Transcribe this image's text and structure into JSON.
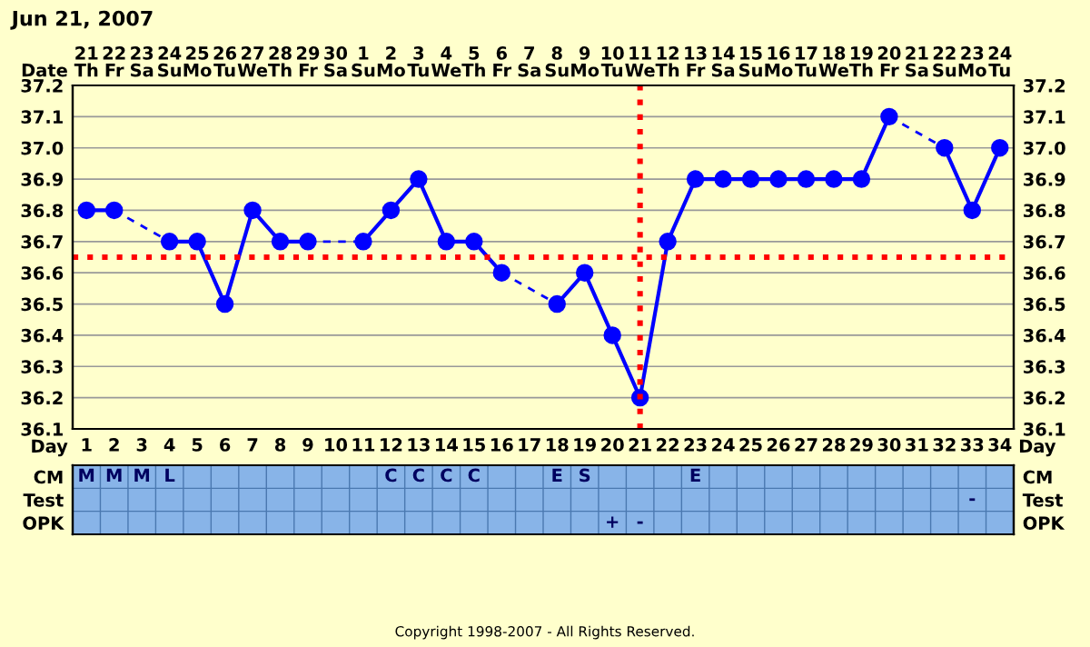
{
  "chart_data": [
    {
      "type": "line",
      "title": "Jun 21, 2007",
      "xlabel": "Day",
      "categories": [
        "1",
        "2",
        "3",
        "4",
        "5",
        "6",
        "7",
        "8",
        "9",
        "10",
        "11",
        "12",
        "13",
        "14",
        "15",
        "16",
        "17",
        "18",
        "19",
        "20",
        "21",
        "22",
        "23",
        "24",
        "25",
        "26",
        "27",
        "28",
        "29",
        "30",
        "31",
        "32",
        "33",
        "34"
      ],
      "series": [
        {
          "color": "#0000ff",
          "values": [
            36.8,
            36.8,
            null,
            36.7,
            36.7,
            36.5,
            36.8,
            36.7,
            36.7,
            null,
            36.7,
            36.8,
            36.9,
            36.7,
            36.7,
            36.6,
            null,
            36.5,
            36.6,
            36.4,
            36.2,
            36.7,
            36.9,
            36.9,
            36.9,
            36.9,
            36.9,
            36.9,
            36.9,
            37.1,
            null,
            37.0,
            36.8,
            37.0
          ]
        }
      ],
      "marker": "circle",
      "line_style": "solid",
      "ylim": [
        36.1,
        37.2
      ],
      "yticks": [
        36.1,
        36.2,
        36.3,
        36.4,
        36.5,
        36.6,
        36.7,
        36.8,
        36.9,
        {
          "value": 37.0,
          "label": "37.0"
        },
        37.1,
        37.2
      ],
      "y2lim": [
        36.1,
        37.2
      ],
      "y2ticks": [
        36.1,
        36.2,
        36.3,
        36.4,
        36.5,
        36.6,
        36.7,
        36.8,
        36.9,
        {
          "value": 37.0,
          "label": "37.0"
        },
        37.1,
        37.2
      ],
      "grid": true,
      "legend": false,
      "ref_lines": [
        {
          "axis": "y",
          "value": 36.65,
          "color": "#ff0000",
          "line_style": "dotted"
        },
        {
          "axis": "x",
          "value": "21",
          "color": "#ff0000",
          "line_style": "dotted"
        }
      ],
      "annotations": [
        "Date",
        "21\nTh",
        "22\nFr",
        "23\nSa",
        "24\nSu",
        "25\nMo",
        "26\nTu",
        "27\nWe",
        "28\nTh",
        "29\nFr",
        "30\nSa",
        "1\nSu",
        "2\nMo",
        "3\nTu",
        "4\nWe",
        "5\nTh",
        "6\nFr",
        "7\nSa",
        "8\nSu",
        "9\nMo",
        "10\nTu",
        "11\nWe",
        "12\nTh",
        "13\nFr",
        "14\nSa",
        "15\nSu",
        "16\nMo",
        "17\nTu",
        "18\nWe",
        "19\nTh",
        "20\nFr",
        "21\nSa",
        "22\nSu",
        "23\nMo",
        "24\nTu"
      ]
    },
    {
      "type": "heatmap",
      "tick_labels": "y",
      "categories": [
        "1",
        "2",
        "3",
        "4",
        "5",
        "6",
        "7",
        "8",
        "9",
        "10",
        "11",
        "12",
        "13",
        "14",
        "15",
        "16",
        "17",
        "18",
        "19",
        "20",
        "21",
        "22",
        "23",
        "24",
        "25",
        "26",
        "27",
        "28",
        "29",
        "30",
        "31",
        "32",
        "33",
        "34"
      ],
      "y_categories": [
        "CM",
        "Test",
        "OPK"
      ],
      "y2_categories": [
        "CM",
        "Test",
        "OPK"
      ],
      "cells": [
        [
          null,
          null,
          null,
          null,
          null,
          null,
          null,
          null,
          null,
          null,
          null,
          null,
          null,
          null,
          null,
          null,
          null,
          null,
          null,
          null,
          null,
          null,
          null,
          null,
          null,
          null,
          null,
          null,
          null,
          null,
          null,
          null,
          null,
          null
        ],
        [
          null,
          null,
          null,
          null,
          null,
          null,
          null,
          null,
          null,
          null,
          null,
          null,
          null,
          null,
          null,
          null,
          null,
          null,
          null,
          null,
          null,
          null,
          null,
          null,
          null,
          null,
          null,
          null,
          null,
          null,
          null,
          null,
          null,
          null
        ],
        [
          null,
          null,
          null,
          null,
          null,
          null,
          null,
          null,
          null,
          null,
          null,
          null,
          null,
          null,
          null,
          null,
          null,
          null,
          null,
          null,
          null,
          null,
          null,
          null,
          null,
          null,
          null,
          null,
          null,
          null,
          null,
          null,
          null,
          null
        ]
      ],
      "cell_labels": [
        [
          "M",
          "M",
          "M",
          "L",
          null,
          null,
          null,
          null,
          null,
          null,
          null,
          "C",
          "C",
          "C",
          "C",
          null,
          null,
          "E",
          "S",
          null,
          null,
          null,
          "E",
          null,
          null,
          null,
          null,
          null,
          null,
          null,
          null,
          null,
          null,
          null
        ],
        [
          null,
          null,
          null,
          null,
          null,
          null,
          null,
          null,
          null,
          null,
          null,
          null,
          null,
          null,
          null,
          null,
          null,
          null,
          null,
          null,
          null,
          null,
          null,
          null,
          null,
          null,
          null,
          null,
          null,
          null,
          null,
          null,
          "-",
          null
        ],
        [
          null,
          null,
          null,
          null,
          null,
          null,
          null,
          null,
          null,
          null,
          null,
          null,
          null,
          null,
          null,
          null,
          null,
          null,
          null,
          "+",
          "-",
          null,
          null,
          null,
          null,
          null,
          null,
          null,
          null,
          null,
          null,
          null,
          null,
          null
        ]
      ],
      "annotations": [
        "Copyright 1998-2007 - All Rights Reserved."
      ]
    }
  ]
}
